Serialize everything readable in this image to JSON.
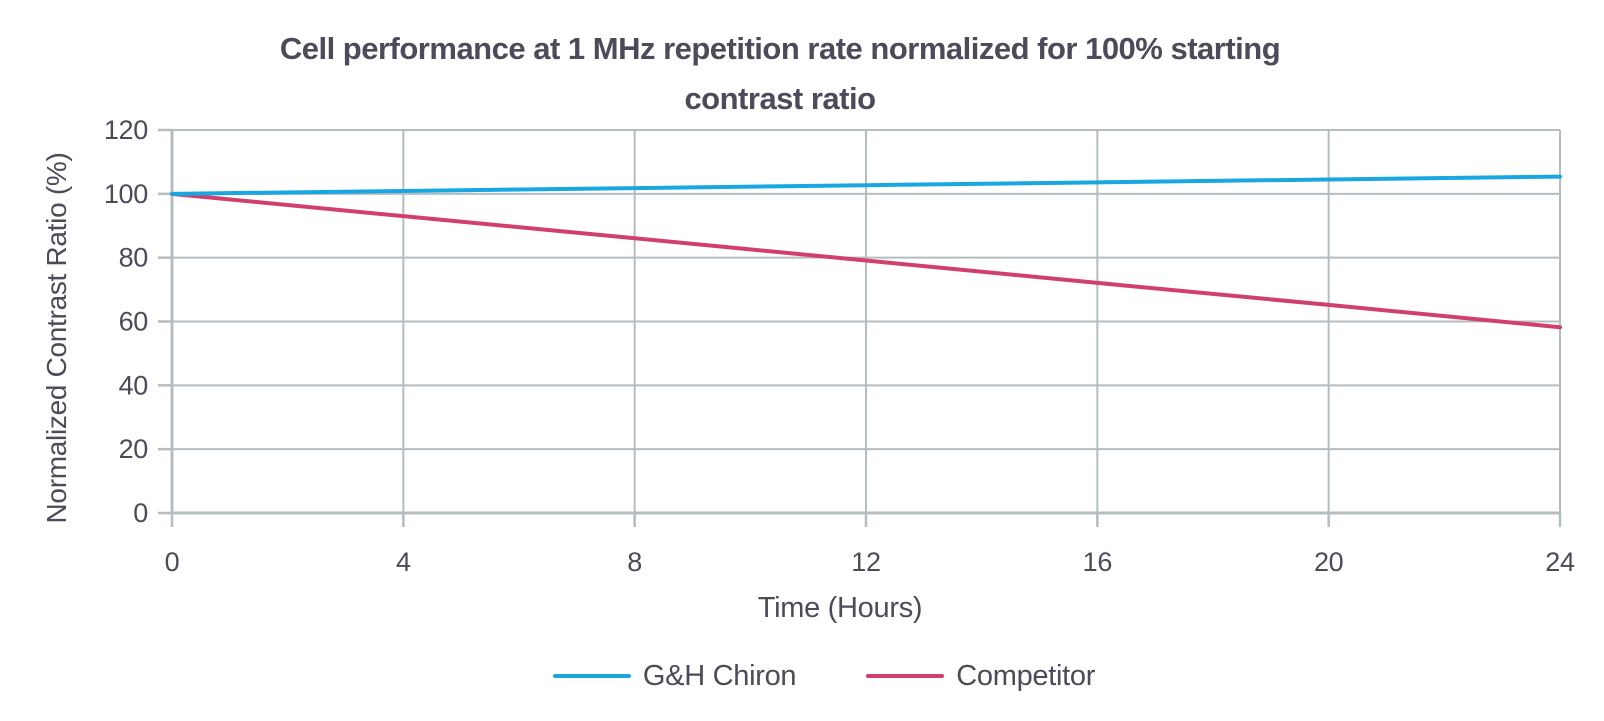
{
  "title": {
    "line1": "Cell performance at 1 MHz repetition rate normalized for 100% starting",
    "line2": "contrast ratio"
  },
  "chart_data": {
    "type": "line",
    "title": "Cell performance at 1 MHz repetition rate normalized for 100% starting contrast ratio",
    "xlabel": "Time (Hours)",
    "ylabel": "Normalized Contrast Ratio (%)",
    "x": [
      0,
      4,
      8,
      12,
      16,
      20,
      24
    ],
    "series": [
      {
        "name": "G&H Chiron",
        "color": "#19a7e1",
        "values": [
          100,
          100.9,
          101.8,
          102.7,
          103.6,
          104.5,
          105.4
        ]
      },
      {
        "name": "Competitor",
        "color": "#d13f6d",
        "values": [
          100,
          93,
          86.1,
          79.1,
          72.1,
          65.2,
          58.2
        ]
      }
    ],
    "xlim": [
      0,
      24
    ],
    "ylim": [
      0,
      120
    ],
    "x_ticks": [
      "0",
      "4",
      "8",
      "12",
      "16",
      "20",
      "24"
    ],
    "y_ticks": [
      "0",
      "20",
      "40",
      "60",
      "80",
      "100",
      "120"
    ],
    "grid": true,
    "legend_position": "bottom"
  },
  "colors": {
    "text": "#4b4b59",
    "grid": "#b5bdc1",
    "background": "#ffffff"
  }
}
